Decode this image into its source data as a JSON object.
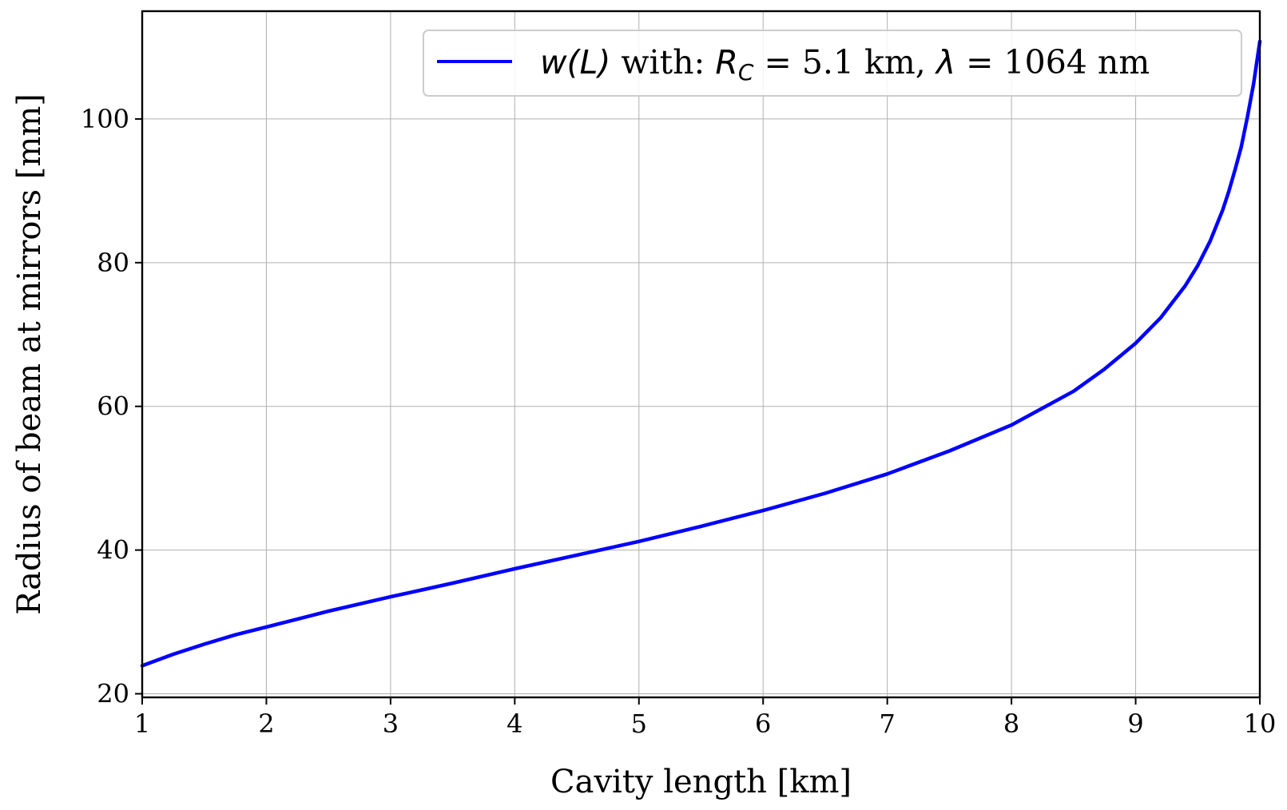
{
  "chart_data": {
    "type": "line",
    "xlabel": "Cavity length [km]",
    "ylabel": "Radius of beam at mirrors [mm]",
    "xlim": [
      1,
      10
    ],
    "ylim": [
      19.5,
      115
    ],
    "xticks": [
      1,
      2,
      3,
      4,
      5,
      6,
      7,
      8,
      9,
      10
    ],
    "yticks": [
      20,
      40,
      60,
      80,
      100
    ],
    "grid": true,
    "legend_position": "top-right",
    "legend": {
      "func": "w(L)",
      "with": " with: ",
      "rc_symbol": "R",
      "rc_subscript": "C",
      "rc_value": " = 5.1 km, ",
      "lambda_symbol": "λ",
      "lambda_value": " = 1064 nm"
    },
    "series": [
      {
        "color": "#0000ff",
        "x": [
          1.0,
          1.25,
          1.5,
          1.75,
          2.0,
          2.5,
          3.0,
          3.5,
          4.0,
          4.5,
          5.0,
          5.5,
          6.0,
          6.5,
          7.0,
          7.5,
          8.0,
          8.5,
          8.75,
          9.0,
          9.2,
          9.4,
          9.5,
          9.6,
          9.7,
          9.75,
          9.8,
          9.85,
          9.9,
          9.95,
          10.0
        ],
        "y": [
          23.9,
          25.5,
          26.9,
          28.2,
          29.3,
          31.5,
          33.5,
          35.4,
          37.4,
          39.3,
          41.2,
          43.3,
          45.5,
          47.9,
          50.6,
          53.8,
          57.4,
          62.1,
          65.2,
          68.8,
          72.3,
          76.8,
          79.6,
          83.0,
          87.3,
          89.9,
          92.9,
          96.1,
          100.3,
          104.9,
          110.8
        ]
      }
    ]
  },
  "colors": {
    "line": "#0000ff",
    "grid": "#b0b0b0",
    "axes": "#000000",
    "legend_border": "#cccccc"
  }
}
